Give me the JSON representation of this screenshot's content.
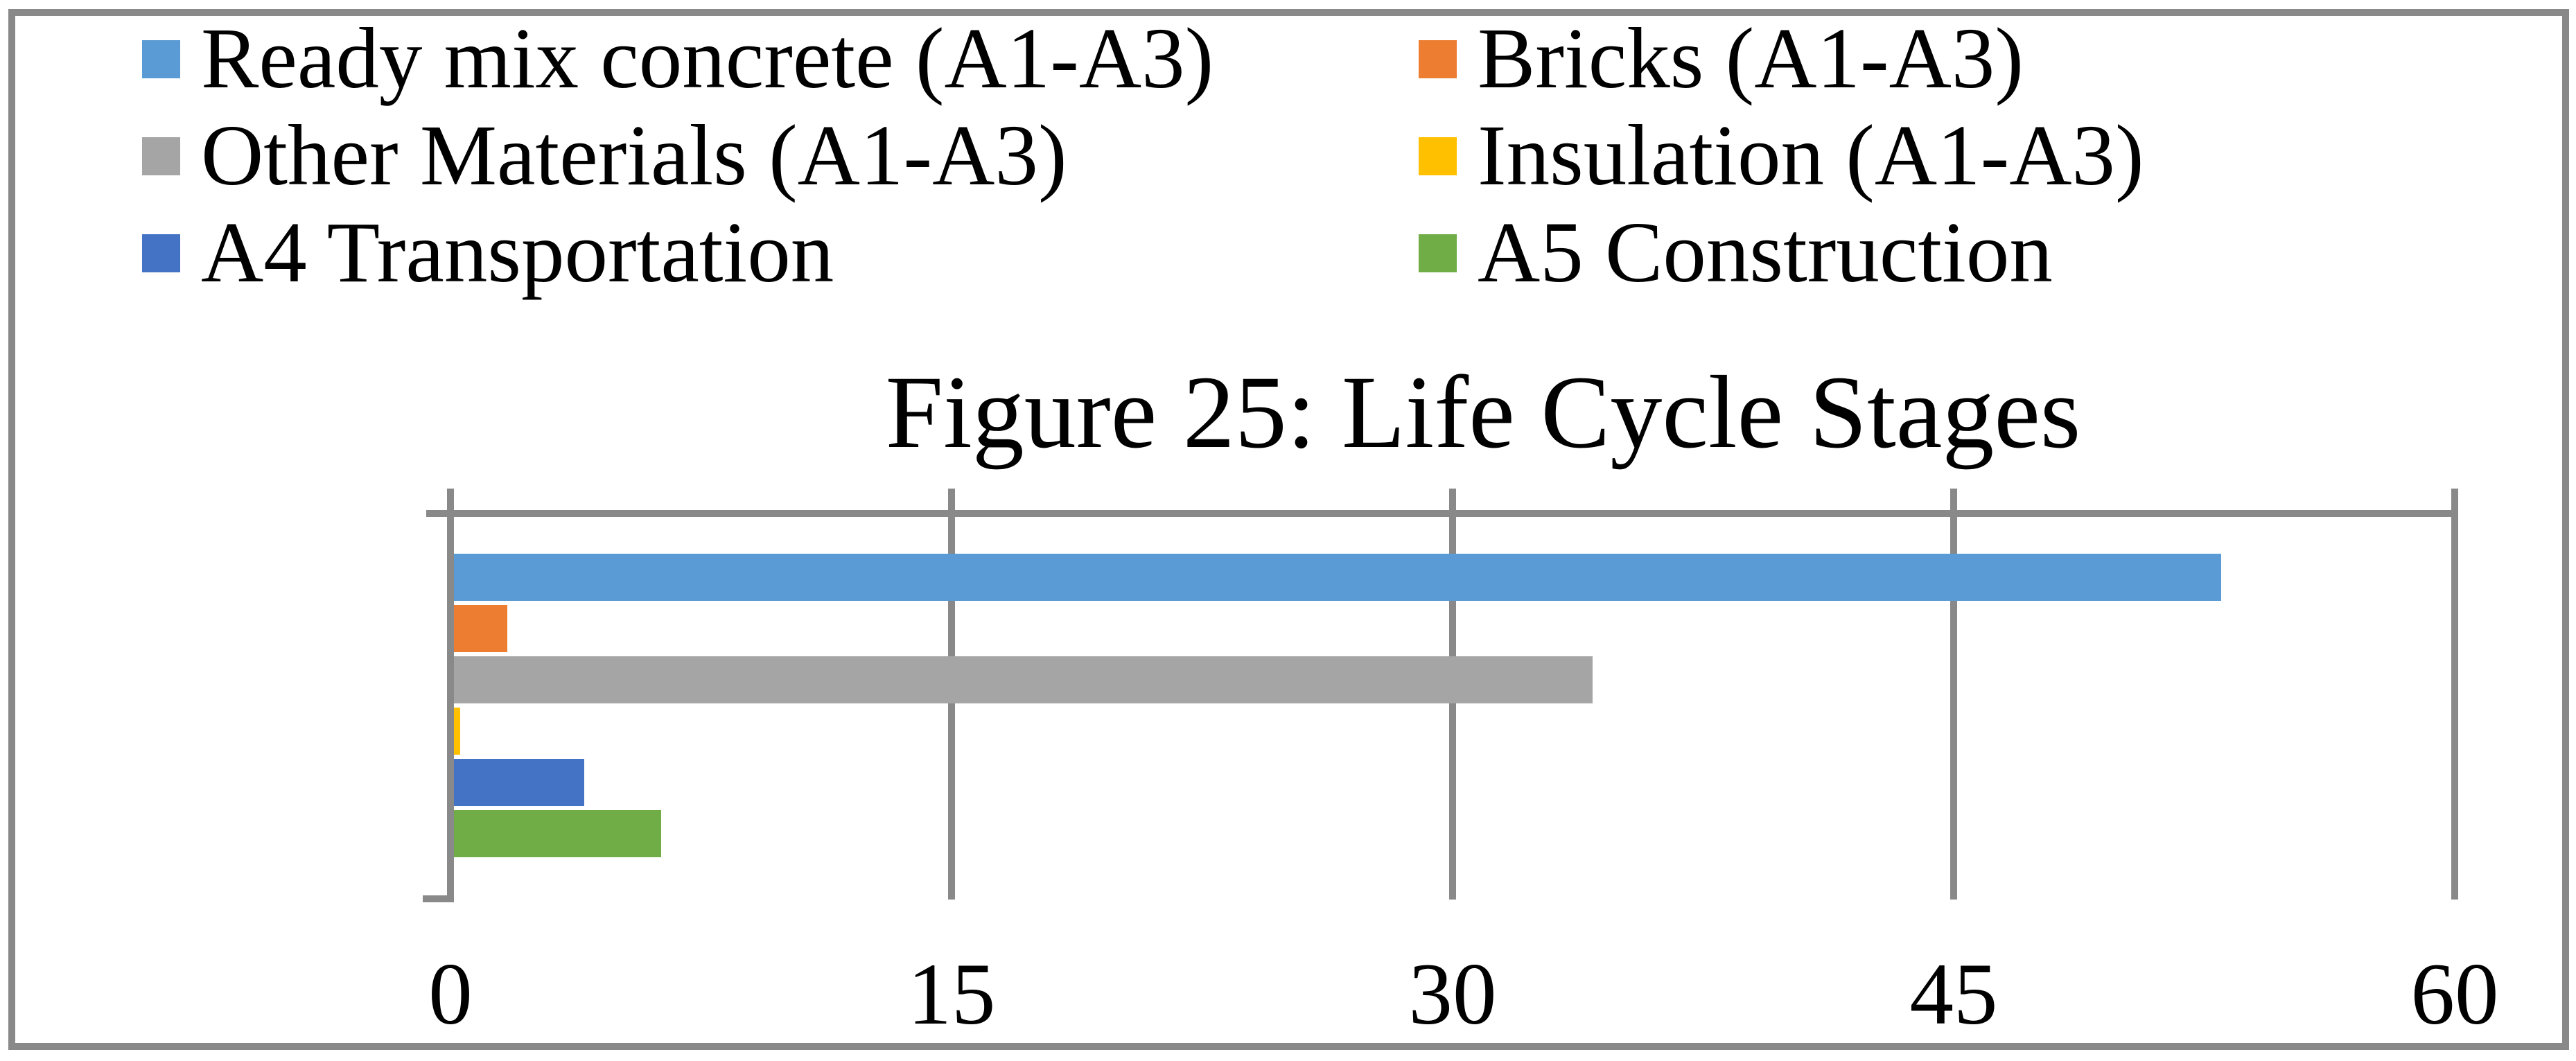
{
  "chart_data": {
    "type": "bar",
    "orientation": "horizontal",
    "title": "Figure 25: Life Cycle Stages",
    "series": [
      {
        "name": "Ready mix concrete (A1-A3)",
        "value": 53,
        "color": "#5B9BD5"
      },
      {
        "name": "Bricks (A1-A3)",
        "value": 1.7,
        "color": "#ED7D31"
      },
      {
        "name": "Other Materials (A1-A3)",
        "value": 34.2,
        "color": "#A5A5A5"
      },
      {
        "name": "Insulation (A1-A3)",
        "value": 0.3,
        "color": "#FFC000"
      },
      {
        "name": "A4 Transportation",
        "value": 4,
        "color": "#4472C4"
      },
      {
        "name": "A5 Construction",
        "value": 6.3,
        "color": "#70AD47"
      }
    ],
    "x_axis": {
      "ticks": [
        0,
        15,
        30,
        45,
        60
      ],
      "range": [
        0,
        60
      ]
    },
    "ylabel": "",
    "xlabel": "",
    "grid": true,
    "legend_position": "top",
    "axis_color": "#898989",
    "border_color": "#898989",
    "background_color": "#FFFFFF",
    "text_color": "#000000"
  }
}
